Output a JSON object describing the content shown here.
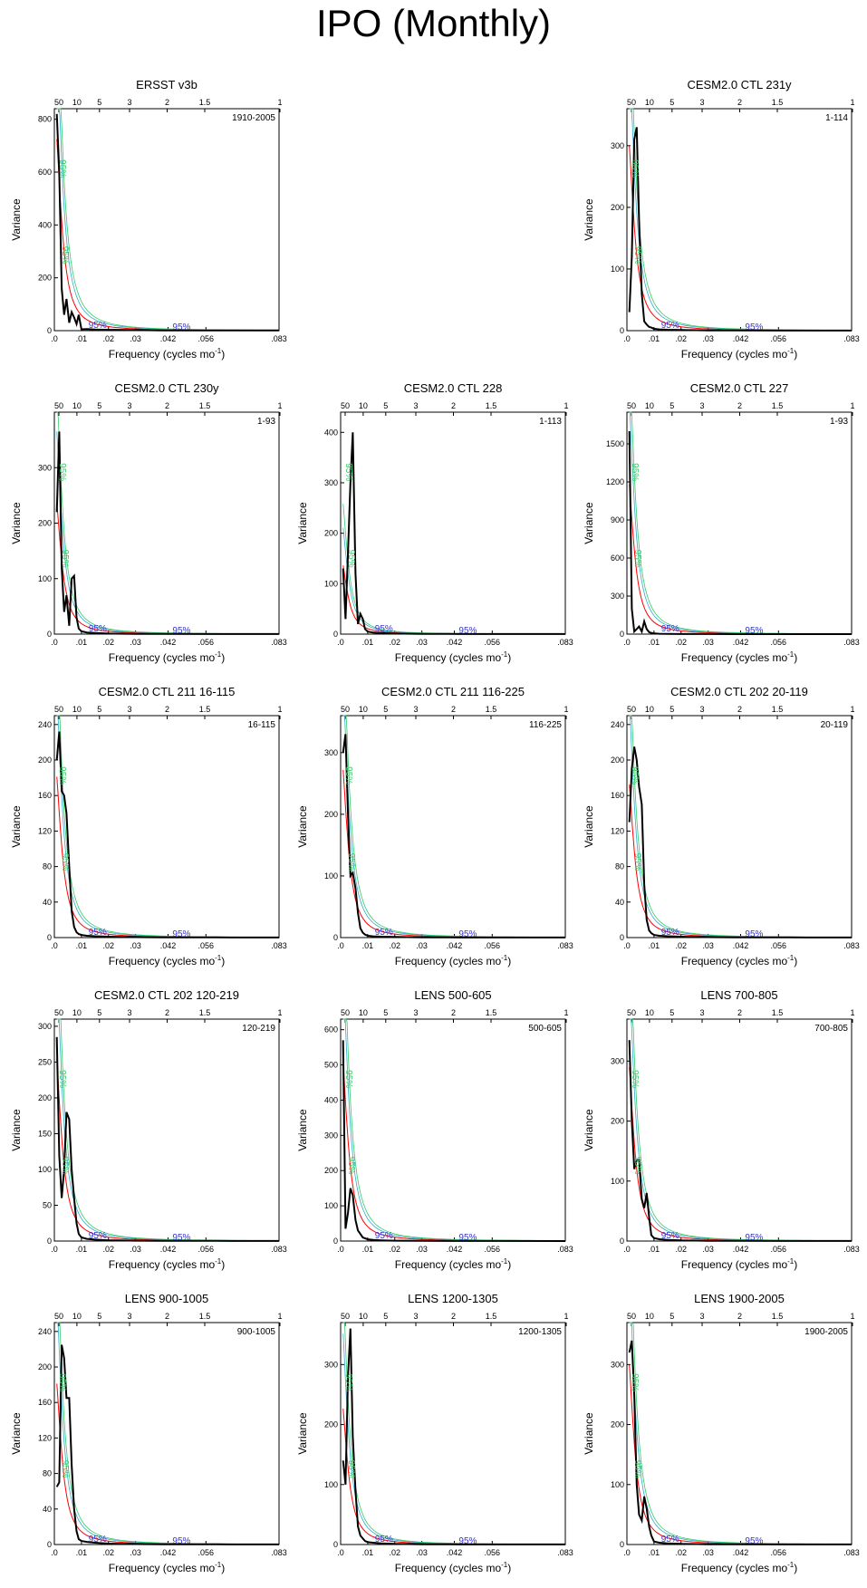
{
  "title": "IPO (Monthly)",
  "common": {
    "xlabel": "Frequency (cycles mo",
    "xlabel_sup": "-1",
    "xlabel_close": ")",
    "ylabel": "Variance",
    "sig_label": "95%",
    "bottom_ticks": [
      {
        "v": 0.0,
        "label": ".0"
      },
      {
        "v": 0.01,
        "label": ".01"
      },
      {
        "v": 0.02,
        "label": ".02"
      },
      {
        "v": 0.03,
        "label": ".03"
      },
      {
        "v": 0.042,
        "label": ".042"
      },
      {
        "v": 0.056,
        "label": ".056"
      },
      {
        "v": 0.083,
        "label": ".083"
      }
    ],
    "top_ticks": [
      {
        "v": 0.001667,
        "label": "50"
      },
      {
        "v": 0.008333,
        "label": "10"
      },
      {
        "v": 0.016667,
        "label": "5"
      },
      {
        "v": 0.027778,
        "label": "3"
      },
      {
        "v": 0.041667,
        "label": "2"
      },
      {
        "v": 0.055556,
        "label": "1.5"
      },
      {
        "v": 0.083333,
        "label": "1"
      }
    ],
    "colors": {
      "spectrum": "#000000",
      "red_noise": "#ff0000",
      "sig_blue": "#3333cc",
      "sig_green": "#33cc66",
      "sig_cyan": "#33aacc"
    }
  },
  "chart_data": [
    {
      "type": "line",
      "title": "ERSST v3b",
      "period": "1910-2005",
      "ylim": [
        0,
        840
      ],
      "yticks": [
        0,
        200,
        400,
        600,
        800
      ],
      "x": [
        0.0009,
        0.0018,
        0.0027,
        0.0036,
        0.0045,
        0.0055,
        0.0064,
        0.0073,
        0.0082,
        0.009,
        0.01,
        0.012,
        0.015,
        0.02,
        0.03,
        0.04,
        0.06,
        0.083
      ],
      "y": [
        820,
        600,
        160,
        60,
        120,
        30,
        70,
        50,
        25,
        60,
        5,
        6,
        4,
        3,
        2,
        1,
        1,
        1
      ],
      "red_peak": 800,
      "sig_left": true
    },
    null,
    {
      "type": "line",
      "title": "CESM2.0 CTL 231y",
      "period": "1-114",
      "ylim": [
        0,
        360
      ],
      "yticks": [
        0,
        100,
        200,
        300
      ],
      "x": [
        0.0009,
        0.0018,
        0.0027,
        0.0036,
        0.0045,
        0.0055,
        0.0064,
        0.0073,
        0.0082,
        0.009,
        0.01,
        0.012,
        0.015,
        0.02,
        0.03,
        0.04,
        0.06,
        0.083
      ],
      "y": [
        30,
        120,
        310,
        330,
        180,
        60,
        15,
        10,
        6,
        5,
        3,
        2,
        1.5,
        1,
        0.5,
        0.3,
        0.2,
        0.1
      ],
      "red_peak": 330,
      "sig_left": true
    },
    {
      "type": "line",
      "title": "CESM2.0 CTL 230y",
      "period": "1-93",
      "ylim": [
        0,
        400
      ],
      "yticks": [
        0,
        100,
        200,
        300
      ],
      "x": [
        0.0009,
        0.0018,
        0.0027,
        0.0036,
        0.0045,
        0.0055,
        0.0064,
        0.0073,
        0.0082,
        0.009,
        0.01,
        0.012,
        0.015,
        0.02,
        0.03,
        0.04,
        0.06,
        0.083
      ],
      "y": [
        220,
        365,
        120,
        40,
        70,
        15,
        100,
        105,
        30,
        10,
        5,
        3,
        2,
        1,
        0.5,
        0.3,
        0.2,
        0.1
      ],
      "red_peak": 260,
      "sig_left": true
    },
    {
      "type": "line",
      "title": "CESM2.0 CTL 228",
      "period": "1-113",
      "ylim": [
        0,
        440
      ],
      "yticks": [
        0,
        100,
        200,
        300,
        400
      ],
      "x": [
        0.0009,
        0.0018,
        0.0027,
        0.0036,
        0.0045,
        0.0055,
        0.0064,
        0.0073,
        0.0082,
        0.009,
        0.01,
        0.012,
        0.015,
        0.02,
        0.03,
        0.04,
        0.06,
        0.083
      ],
      "y": [
        130,
        30,
        160,
        300,
        400,
        120,
        20,
        40,
        30,
        10,
        5,
        3,
        2,
        1,
        0.5,
        0.3,
        0.2,
        0.1
      ],
      "red_peak": 150,
      "sig_left": true
    },
    {
      "type": "line",
      "title": "CESM2.0 CTL 227",
      "period": "1-93",
      "ylim": [
        0,
        1750
      ],
      "yticks": [
        0,
        300,
        600,
        900,
        1200,
        1500
      ],
      "x": [
        0.0009,
        0.0018,
        0.0027,
        0.0036,
        0.0045,
        0.0055,
        0.0064,
        0.0073,
        0.0082,
        0.009,
        0.01,
        0.012,
        0.015,
        0.02,
        0.03,
        0.04,
        0.06,
        0.083
      ],
      "y": [
        1600,
        200,
        20,
        40,
        60,
        20,
        100,
        40,
        15,
        10,
        5,
        3,
        2,
        1,
        0.5,
        0.3,
        0.2,
        0.1
      ],
      "red_peak": 1300,
      "sig_left": true
    },
    {
      "type": "line",
      "title": "CESM2.0 CTL 211 16-115",
      "period": "16-115",
      "ylim": [
        0,
        250
      ],
      "yticks": [
        0,
        40,
        80,
        120,
        160,
        200,
        240
      ],
      "x": [
        0.0009,
        0.0018,
        0.0027,
        0.0036,
        0.0045,
        0.0055,
        0.0064,
        0.0073,
        0.0082,
        0.009,
        0.01,
        0.012,
        0.015,
        0.02,
        0.03,
        0.04,
        0.06,
        0.083
      ],
      "y": [
        200,
        232,
        165,
        160,
        140,
        80,
        30,
        12,
        6,
        4,
        3,
        2,
        1.5,
        1,
        0.5,
        0.3,
        0.2,
        0.1
      ],
      "red_peak": 200,
      "sig_left": true
    },
    {
      "type": "line",
      "title": "CESM2.0 CTL 211 116-225",
      "period": "116-225",
      "ylim": [
        0,
        360
      ],
      "yticks": [
        0,
        100,
        200,
        300
      ],
      "x": [
        0.0009,
        0.0018,
        0.0027,
        0.0036,
        0.0045,
        0.0055,
        0.0064,
        0.0073,
        0.0082,
        0.009,
        0.01,
        0.012,
        0.015,
        0.02,
        0.03,
        0.04,
        0.06,
        0.083
      ],
      "y": [
        300,
        330,
        200,
        100,
        105,
        80,
        40,
        15,
        8,
        5,
        3,
        2,
        1.5,
        1,
        0.5,
        0.3,
        0.2,
        0.1
      ],
      "red_peak": 300,
      "sig_left": true
    },
    {
      "type": "line",
      "title": "CESM2.0 CTL 202 20-119",
      "period": "20-119",
      "ylim": [
        0,
        250
      ],
      "yticks": [
        0,
        40,
        80,
        120,
        160,
        200,
        240
      ],
      "x": [
        0.0009,
        0.0018,
        0.0027,
        0.0036,
        0.0045,
        0.0055,
        0.0064,
        0.0073,
        0.0082,
        0.009,
        0.01,
        0.012,
        0.015,
        0.02,
        0.03,
        0.04,
        0.06,
        0.083
      ],
      "y": [
        130,
        190,
        215,
        200,
        170,
        150,
        60,
        20,
        8,
        5,
        3,
        2,
        1.5,
        1,
        0.5,
        0.3,
        0.2,
        0.1
      ],
      "red_peak": 190,
      "sig_left": true
    },
    {
      "type": "line",
      "title": "CESM2.0 CTL 202 120-219",
      "period": "120-219",
      "ylim": [
        0,
        310
      ],
      "yticks": [
        0,
        50,
        100,
        150,
        200,
        250,
        300
      ],
      "x": [
        0.0009,
        0.0018,
        0.0027,
        0.0036,
        0.0045,
        0.0055,
        0.0064,
        0.0073,
        0.0082,
        0.009,
        0.01,
        0.012,
        0.015,
        0.02,
        0.03,
        0.04,
        0.06,
        0.083
      ],
      "y": [
        285,
        120,
        60,
        100,
        180,
        170,
        100,
        60,
        25,
        10,
        5,
        3,
        2,
        1,
        0.5,
        0.3,
        0.2,
        0.1
      ],
      "red_peak": 280,
      "sig_left": true
    },
    {
      "type": "line",
      "title": "LENS 500-605",
      "period": "500-605",
      "ylim": [
        0,
        630
      ],
      "yticks": [
        0,
        100,
        200,
        300,
        400,
        500,
        600
      ],
      "x": [
        0.0009,
        0.0018,
        0.0027,
        0.0036,
        0.0045,
        0.0055,
        0.0064,
        0.0073,
        0.0082,
        0.009,
        0.01,
        0.012,
        0.015,
        0.02,
        0.03,
        0.04,
        0.06,
        0.083
      ],
      "y": [
        570,
        35,
        80,
        150,
        130,
        60,
        30,
        20,
        10,
        8,
        5,
        3,
        2,
        1,
        0.5,
        0.3,
        0.2,
        0.1
      ],
      "red_peak": 560,
      "sig_left": true
    },
    {
      "type": "line",
      "title": "LENS 700-805",
      "period": "700-805",
      "ylim": [
        0,
        370
      ],
      "yticks": [
        0,
        100,
        200,
        300
      ],
      "x": [
        0.0009,
        0.0018,
        0.0027,
        0.0036,
        0.0045,
        0.0055,
        0.0064,
        0.0073,
        0.0082,
        0.009,
        0.01,
        0.012,
        0.015,
        0.02,
        0.03,
        0.04,
        0.06,
        0.083
      ],
      "y": [
        335,
        200,
        120,
        135,
        135,
        70,
        55,
        80,
        40,
        10,
        5,
        3,
        2,
        1,
        0.5,
        0.3,
        0.2,
        0.1
      ],
      "red_peak": 320,
      "sig_left": true
    },
    {
      "type": "line",
      "title": "LENS 900-1005",
      "period": "900-1005",
      "ylim": [
        0,
        250
      ],
      "yticks": [
        0,
        40,
        80,
        120,
        160,
        200,
        240
      ],
      "x": [
        0.0009,
        0.0018,
        0.0027,
        0.0036,
        0.0045,
        0.0055,
        0.0064,
        0.0073,
        0.0082,
        0.009,
        0.01,
        0.012,
        0.015,
        0.02,
        0.03,
        0.04,
        0.06,
        0.083
      ],
      "y": [
        65,
        70,
        225,
        210,
        165,
        165,
        90,
        40,
        15,
        6,
        4,
        3,
        2,
        1,
        0.5,
        0.3,
        0.2,
        0.1
      ],
      "red_peak": 200,
      "sig_left": true
    },
    {
      "type": "line",
      "title": "LENS 1200-1305",
      "period": "1200-1305",
      "ylim": [
        0,
        370
      ],
      "yticks": [
        0,
        100,
        200,
        300
      ],
      "x": [
        0.0009,
        0.0018,
        0.0027,
        0.0036,
        0.0045,
        0.0055,
        0.0064,
        0.0073,
        0.0082,
        0.009,
        0.01,
        0.012,
        0.015,
        0.02,
        0.03,
        0.04,
        0.06,
        0.083
      ],
      "y": [
        140,
        100,
        280,
        360,
        180,
        90,
        30,
        15,
        10,
        6,
        4,
        3,
        2,
        1,
        0.5,
        0.3,
        0.2,
        0.1
      ],
      "red_peak": 250,
      "sig_left": true
    },
    {
      "type": "line",
      "title": "LENS 1900-2005",
      "period": "1900-2005",
      "ylim": [
        0,
        370
      ],
      "yticks": [
        0,
        100,
        200,
        300
      ],
      "x": [
        0.0009,
        0.0018,
        0.0027,
        0.0036,
        0.0045,
        0.0055,
        0.0064,
        0.0073,
        0.0082,
        0.009,
        0.01,
        0.012,
        0.015,
        0.02,
        0.03,
        0.04,
        0.06,
        0.083
      ],
      "y": [
        320,
        340,
        250,
        100,
        50,
        40,
        80,
        60,
        30,
        15,
        5,
        3,
        2,
        1,
        0.5,
        0.3,
        0.2,
        0.1
      ],
      "red_peak": 330,
      "sig_left": true
    }
  ]
}
